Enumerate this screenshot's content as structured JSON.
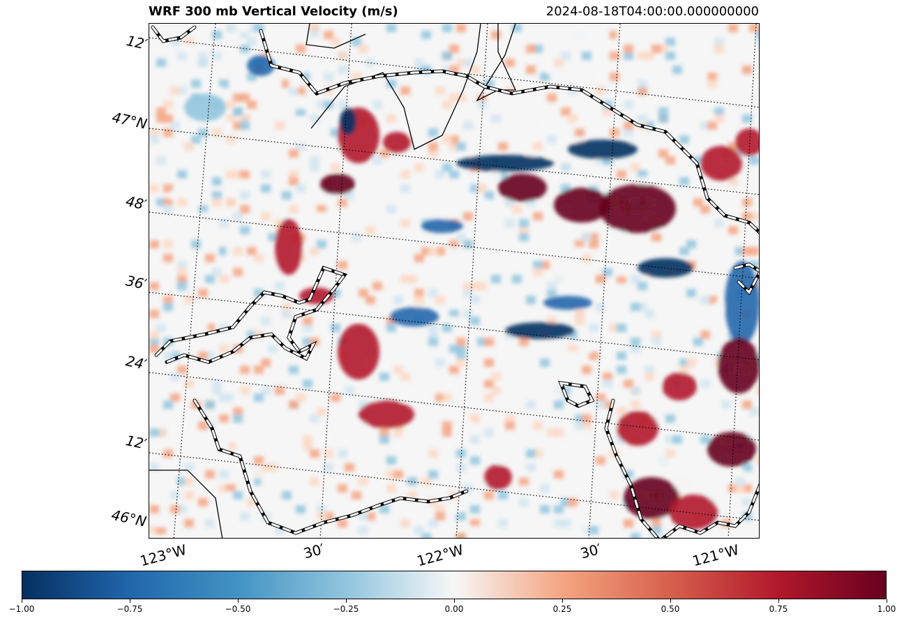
{
  "figure": {
    "title": "WRF 300 mb Vertical Velocity (m/s)",
    "valid_time": "2024-08-18T04:00:00.000000000"
  },
  "map": {
    "lat_labels": [
      "12′",
      "47°N",
      "48′",
      "36′",
      "24′",
      "12′",
      "46°N"
    ],
    "lon_labels": [
      "123°W",
      "30′",
      "122°W",
      "30′",
      "121°W"
    ],
    "colormap": "RdBu_r",
    "colors": {
      "strong_negative": "#053061",
      "negative": "#2166ac",
      "weak_negative": "#92c5de",
      "zero": "#f7f7f7",
      "weak_positive": "#f4a582",
      "positive": "#b2182b",
      "strong_positive": "#67001f"
    }
  },
  "colorbar": {
    "ticks": [
      "−1.00",
      "−0.75",
      "−0.50",
      "−0.25",
      "0.00",
      "0.25",
      "0.50",
      "0.75",
      "1.00"
    ],
    "min": -1.0,
    "max": 1.0
  }
}
